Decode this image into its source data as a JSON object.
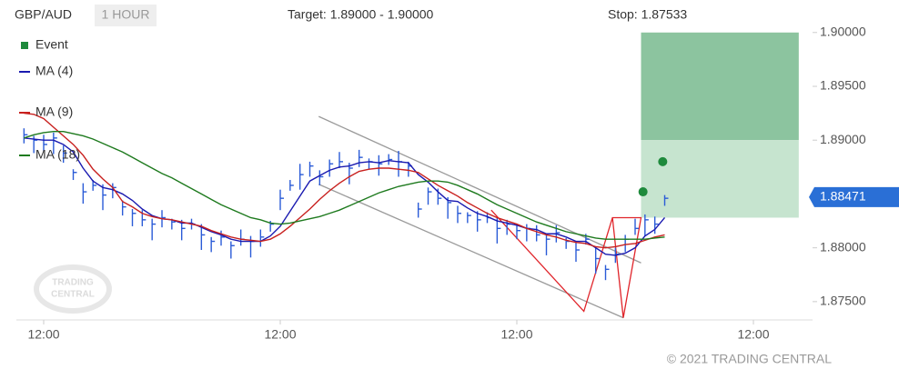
{
  "chart_data": {
    "type": "ohlc",
    "symbol": "GBP/AUD",
    "timeframe": "1 HOUR",
    "target": "Target: 1.89000 - 1.90000",
    "stop": "Stop: 1.87533",
    "copyright": "© 2021 TRADING CENTRAL",
    "watermark": [
      "TRADING",
      "CENTRAL"
    ],
    "xlim": [
      -2.77,
      78
    ],
    "xticks": [
      {
        "value": 0,
        "label": "12:00"
      },
      {
        "value": 24,
        "label": "12:00"
      },
      {
        "value": 48,
        "label": "12:00"
      },
      {
        "value": 72,
        "label": "12:00"
      }
    ],
    "ylim": [
      1.8733,
      1.9015
    ],
    "yticks": [
      {
        "value": 1.875,
        "label": "1.87500"
      },
      {
        "value": 1.88,
        "label": "1.88000"
      },
      {
        "value": 1.885,
        "label": "1.88500"
      },
      {
        "value": 1.89,
        "label": "1.89000"
      },
      {
        "value": 1.895,
        "label": "1.89500"
      },
      {
        "value": 1.9,
        "label": "1.90000"
      }
    ],
    "last_price": {
      "value": 1.88471,
      "label": "1.88471"
    },
    "x": [
      -2,
      -1,
      0,
      1,
      2,
      3,
      4,
      5,
      6,
      7,
      8,
      9,
      10,
      11,
      12,
      13,
      14,
      15,
      16,
      17,
      18,
      19,
      20,
      21,
      22,
      23,
      24,
      25,
      26,
      27,
      28,
      29,
      30,
      31,
      32,
      33,
      34,
      35,
      36,
      37,
      38,
      39,
      40,
      41,
      42,
      43,
      44,
      45,
      46,
      47,
      48,
      49,
      50,
      51,
      52,
      53,
      54,
      55,
      56,
      57,
      58,
      59,
      60,
      61,
      62,
      63
    ],
    "ohlc": {
      "color": "#2a5bd7",
      "high": [
        1.8911,
        1.8904,
        1.8905,
        1.8907,
        1.8895,
        1.8873,
        1.886,
        1.8863,
        1.8859,
        1.886,
        1.8844,
        1.8836,
        1.8835,
        1.8827,
        1.8835,
        1.8827,
        1.8826,
        1.8827,
        1.8822,
        1.881,
        1.8816,
        1.8806,
        1.8817,
        1.8811,
        1.8817,
        1.8825,
        1.8854,
        1.8863,
        1.8878,
        1.888,
        1.8872,
        1.8882,
        1.8889,
        1.8879,
        1.8891,
        1.8883,
        1.8886,
        1.8887,
        1.889,
        1.888,
        1.8842,
        1.8856,
        1.8855,
        1.8847,
        1.8839,
        1.8833,
        1.8834,
        1.8833,
        1.8828,
        1.8826,
        1.8822,
        1.8822,
        1.8821,
        1.8813,
        1.8821,
        1.8809,
        1.8806,
        1.8813,
        1.88,
        1.8784,
        1.88,
        1.8812,
        1.8827,
        1.8831,
        1.8829,
        1.8849
      ],
      "low": [
        1.8897,
        1.8888,
        1.889,
        1.8887,
        1.8879,
        1.8863,
        1.8841,
        1.8853,
        1.8835,
        1.8846,
        1.883,
        1.882,
        1.882,
        1.8807,
        1.8819,
        1.8817,
        1.8807,
        1.8817,
        1.8798,
        1.8796,
        1.8802,
        1.879,
        1.8802,
        1.8791,
        1.8801,
        1.8815,
        1.8835,
        1.8853,
        1.8854,
        1.8866,
        1.8858,
        1.8866,
        1.8874,
        1.8859,
        1.8875,
        1.8873,
        1.8867,
        1.8877,
        1.8866,
        1.8866,
        1.8828,
        1.884,
        1.884,
        1.8827,
        1.8823,
        1.8823,
        1.8815,
        1.8823,
        1.8804,
        1.8812,
        1.8808,
        1.8806,
        1.8806,
        1.8793,
        1.8805,
        1.8799,
        1.8787,
        1.8803,
        1.8776,
        1.877,
        1.8786,
        1.8796,
        1.8812,
        1.8811,
        1.8813,
        1.8839
      ],
      "close": [
        1.8905,
        1.89,
        1.8896,
        1.8902,
        1.8888,
        1.887,
        1.8852,
        1.8858,
        1.8849,
        1.8856,
        1.8838,
        1.8832,
        1.8826,
        1.8822,
        1.8828,
        1.8824,
        1.8818,
        1.8822,
        1.8812,
        1.8806,
        1.881,
        1.8802,
        1.8808,
        1.8806,
        1.881,
        1.8822,
        1.8846,
        1.8858,
        1.8868,
        1.8876,
        1.8866,
        1.8878,
        1.888,
        1.8874,
        1.8884,
        1.888,
        1.8878,
        1.8882,
        1.888,
        1.8876,
        1.8836,
        1.8852,
        1.8846,
        1.8842,
        1.8832,
        1.883,
        1.8826,
        1.8828,
        1.8818,
        1.8822,
        1.8816,
        1.8818,
        1.8812,
        1.8808,
        1.8814,
        1.8806,
        1.8798,
        1.8808,
        1.879,
        1.878,
        1.8794,
        1.8808,
        1.8818,
        1.8826,
        1.8822,
        1.8846
      ]
    },
    "series": [
      {
        "name": "Event",
        "color": "#1e8a3c",
        "kind": "event",
        "x": [
          60.8,
          62.8
        ],
        "values": [
          1.8852,
          1.888
        ]
      },
      {
        "name": "MA (4)",
        "color": "#1a1ab0",
        "kind": "line",
        "values": [
          1.8902,
          1.8901,
          1.89,
          1.89,
          1.8896,
          1.8889,
          1.8874,
          1.8862,
          1.8856,
          1.8854,
          1.885,
          1.8844,
          1.8836,
          1.883,
          1.8827,
          1.8826,
          1.8823,
          1.8823,
          1.8819,
          1.8815,
          1.8812,
          1.8808,
          1.8806,
          1.8806,
          1.8806,
          1.8811,
          1.882,
          1.8834,
          1.8848,
          1.8862,
          1.8867,
          1.8872,
          1.8875,
          1.8876,
          1.8879,
          1.888,
          1.8879,
          1.8881,
          1.888,
          1.8879,
          1.8868,
          1.8861,
          1.8852,
          1.8844,
          1.8843,
          1.8837,
          1.8832,
          1.8829,
          1.8825,
          1.8823,
          1.8821,
          1.8818,
          1.8817,
          1.8813,
          1.8813,
          1.881,
          1.8806,
          1.8806,
          1.88,
          1.8794,
          1.8793,
          1.8795,
          1.88,
          1.8811,
          1.8817,
          1.8828
        ]
      },
      {
        "name": "MA (9)",
        "color": "#c8201e",
        "kind": "line",
        "values": [
          1.8925,
          1.8924,
          1.892,
          1.8912,
          1.8904,
          1.8896,
          1.8886,
          1.8873,
          1.8864,
          1.8856,
          1.8843,
          1.8838,
          1.8832,
          1.8829,
          1.8827,
          1.8826,
          1.8824,
          1.8822,
          1.882,
          1.8816,
          1.8813,
          1.881,
          1.8808,
          1.8807,
          1.8806,
          1.8808,
          1.8813,
          1.882,
          1.8828,
          1.8836,
          1.8845,
          1.8853,
          1.886,
          1.8866,
          1.8871,
          1.8873,
          1.8874,
          1.8874,
          1.8873,
          1.8872,
          1.887,
          1.8864,
          1.8858,
          1.8853,
          1.8848,
          1.8842,
          1.8837,
          1.8832,
          1.8828,
          1.8825,
          1.8822,
          1.8818,
          1.8815,
          1.8812,
          1.881,
          1.8807,
          1.8805,
          1.8804,
          1.8801,
          1.88,
          1.8801,
          1.8803,
          1.8804,
          1.8807,
          1.881,
          1.8812
        ]
      },
      {
        "name": "MA (18)",
        "color": "#1e7a1e",
        "kind": "line",
        "values": [
          1.8902,
          1.8905,
          1.8907,
          1.8908,
          1.8908,
          1.8906,
          1.8904,
          1.8901,
          1.8897,
          1.8893,
          1.8889,
          1.8884,
          1.8879,
          1.8874,
          1.8869,
          1.8865,
          1.886,
          1.8855,
          1.885,
          1.8845,
          1.884,
          1.8836,
          1.8832,
          1.8828,
          1.8826,
          1.8823,
          1.8822,
          1.8823,
          1.8825,
          1.8827,
          1.8829,
          1.8832,
          1.8835,
          1.8839,
          1.8843,
          1.8847,
          1.8851,
          1.8854,
          1.8857,
          1.8859,
          1.8861,
          1.8862,
          1.8862,
          1.8861,
          1.8858,
          1.8854,
          1.885,
          1.8845,
          1.884,
          1.8836,
          1.8832,
          1.8828,
          1.8824,
          1.8821,
          1.8818,
          1.8815,
          1.8813,
          1.8811,
          1.8809,
          1.8808,
          1.8808,
          1.8808,
          1.8808,
          1.8808,
          1.8809,
          1.881
        ]
      }
    ],
    "zones": [
      {
        "color": "#8cc49f",
        "x": [
          60.6,
          76.6
        ],
        "y": [
          1.89,
          1.9
        ]
      },
      {
        "color": "#c6e4cf",
        "x": [
          60.6,
          76.6
        ],
        "y": [
          1.8828,
          1.89
        ]
      }
    ],
    "lines": [
      {
        "color": "#9a9a9a",
        "x": [
          27.9,
          60.6
        ],
        "y": [
          1.8922,
          1.8786
        ]
      },
      {
        "color": "#9a9a9a",
        "x": [
          27.9,
          58.8
        ],
        "y": [
          1.8859,
          1.8735
        ]
      },
      {
        "color": "#e0242a",
        "x": [
          45.4,
          54.8,
          57.7,
          60.6,
          58.8,
          57.7
        ],
        "y": [
          1.8835,
          1.8741,
          1.8828,
          1.8828,
          1.8735,
          1.8828
        ]
      }
    ]
  }
}
